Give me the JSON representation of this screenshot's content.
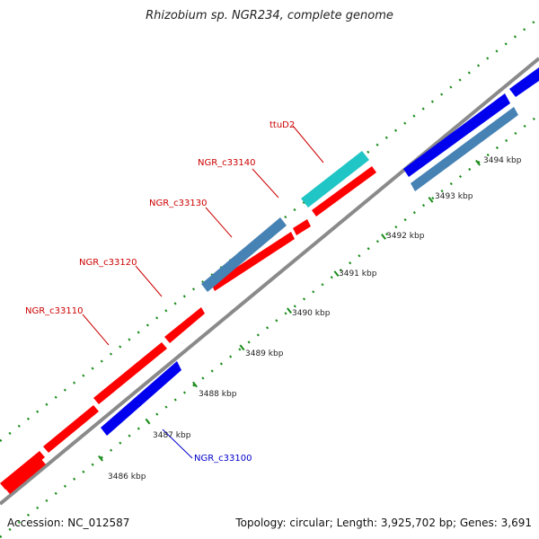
{
  "title": "Rhizobium sp. NGR234, complete genome",
  "footer": {
    "accession": "Accession: NC_012587",
    "summary": "Topology: circular; Length: 3,925,702 bp; Genes: 3,691"
  },
  "scale_labels": [
    "3486 kbp",
    "3487 kbp",
    "3488 kbp",
    "3489 kbp",
    "3490 kbp",
    "3491 kbp",
    "3492 kbp",
    "3493 kbp",
    "3494 kbp"
  ],
  "colors": {
    "backbone": "#8a8a8a",
    "ruler": "#1a8c1a",
    "forward_gene": "#ff0000",
    "reverse_gene": "#0000ee",
    "rna_feature": "#4682b4",
    "trna_feature": "#20c5c5",
    "label_forward": "#cc0000",
    "label_reverse": "#0000cc"
  },
  "gene_labels": [
    "ttuD2",
    "NGR_c33140",
    "NGR_c33130",
    "NGR_c33120",
    "NGR_c33110",
    "NGR_c33100"
  ]
}
